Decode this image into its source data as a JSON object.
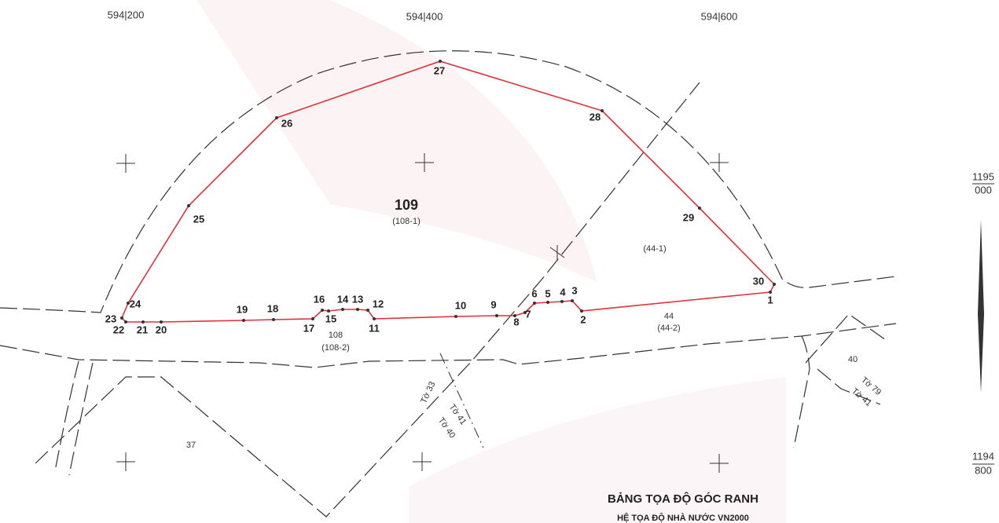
{
  "grid_labels": {
    "top": [
      "594|200",
      "594|400",
      "594|600"
    ],
    "right": [
      {
        "top": "1195",
        "bottom": "000"
      },
      {
        "top": "1194",
        "bottom": "800"
      }
    ]
  },
  "points": [
    "1",
    "2",
    "3",
    "4",
    "5",
    "6",
    "7",
    "8",
    "9",
    "10",
    "11",
    "12",
    "13",
    "14",
    "15",
    "16",
    "17",
    "18",
    "19",
    "20",
    "21",
    "22",
    "23",
    "24",
    "25",
    "26",
    "27",
    "28",
    "29",
    "30"
  ],
  "parcels": [
    "109",
    "(108-1)",
    "(44-1)",
    "108",
    "(108-2)",
    "44",
    "(44-2)",
    "40",
    "37"
  ],
  "sheets": [
    "Tờ 33",
    "Tờ 41",
    "Tờ 40",
    "Tờ 79",
    "Tờ 41"
  ],
  "table": {
    "title": "BẢNG TỌA ĐỘ GÓC RANH",
    "subtitle": "HỆ TỌA ĐỘ NHÀ NƯỚC VN2000"
  }
}
